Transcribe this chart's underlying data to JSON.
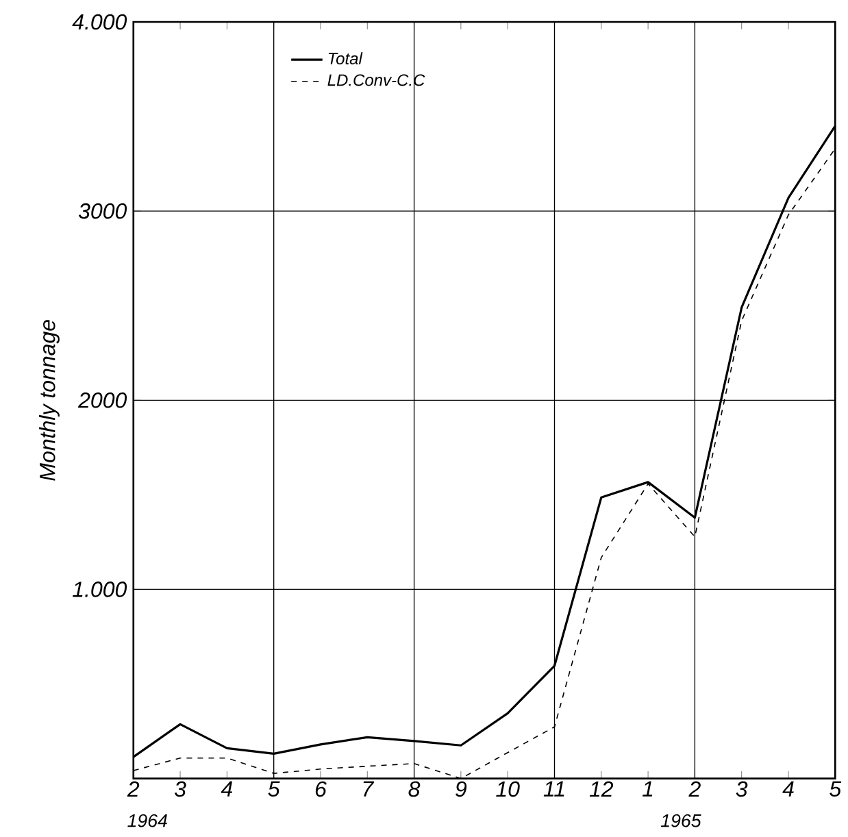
{
  "chart_data": {
    "type": "line",
    "ylabel": "Monthly tonnage",
    "categories": [
      "2",
      "3",
      "4",
      "5",
      "6",
      "7",
      "8",
      "9",
      "10",
      "11",
      "12",
      "1",
      "2",
      "3",
      "4",
      "5"
    ],
    "ylim": [
      0,
      4000
    ],
    "yticks": [
      {
        "value": 1000,
        "label": "1.000"
      },
      {
        "value": 2000,
        "label": "2000"
      },
      {
        "value": 3000,
        "label": "3000"
      },
      {
        "value": 4000,
        "label": "4.000"
      }
    ],
    "grid": true,
    "legend": "top left",
    "marker": "none",
    "annotations": [
      "1964",
      "1965"
    ],
    "series": [
      {
        "name": "Total",
        "color": "#000000",
        "line_style": "solid",
        "values": [
          114,
          287,
          160,
          131,
          180,
          218,
          198,
          175,
          345,
          596,
          1486,
          1567,
          1379,
          2490,
          3070,
          3450
        ]
      },
      {
        "name": "LD.Conv-C.C",
        "color": "#000000",
        "line_style": "dashed",
        "values": [
          42,
          108,
          108,
          27,
          50,
          65,
          79,
          0,
          137,
          273,
          1168,
          1558,
          1278,
          2420,
          2980,
          3330
        ]
      }
    ]
  }
}
